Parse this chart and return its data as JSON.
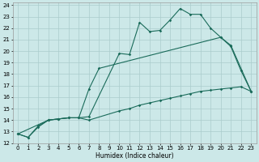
{
  "xlabel": "Humidex (Indice chaleur)",
  "bg_color": "#cce8e8",
  "grid_color": "#aacccc",
  "line_color": "#1a6b5a",
  "xlim": [
    -0.5,
    23.5
  ],
  "ylim": [
    12,
    24.2
  ],
  "xticks": [
    0,
    1,
    2,
    3,
    4,
    5,
    6,
    7,
    8,
    9,
    10,
    11,
    12,
    13,
    14,
    15,
    16,
    17,
    18,
    19,
    20,
    21,
    22,
    23
  ],
  "yticks": [
    12,
    13,
    14,
    15,
    16,
    17,
    18,
    19,
    20,
    21,
    22,
    23,
    24
  ],
  "line1_x": [
    0,
    1,
    2,
    3,
    4,
    5,
    6,
    7,
    10,
    11,
    12,
    13,
    14,
    15,
    16,
    17,
    18,
    19,
    20,
    21,
    22,
    23
  ],
  "line1_y": [
    12.8,
    12.5,
    13.5,
    14.0,
    14.1,
    14.2,
    14.2,
    14.3,
    19.8,
    19.7,
    22.5,
    21.7,
    21.8,
    22.7,
    23.7,
    23.2,
    23.2,
    22.0,
    21.2,
    20.4,
    18.3,
    16.5
  ],
  "line2_x": [
    0,
    3,
    4,
    5,
    6,
    7,
    8,
    20,
    21,
    23
  ],
  "line2_y": [
    12.8,
    14.0,
    14.1,
    14.2,
    14.2,
    16.7,
    18.5,
    21.2,
    20.5,
    16.5
  ],
  "line3_x": [
    0,
    1,
    2,
    3,
    4,
    5,
    6,
    7,
    10,
    11,
    12,
    13,
    14,
    15,
    16,
    17,
    18,
    19,
    20,
    21,
    22,
    23
  ],
  "line3_y": [
    12.8,
    12.5,
    13.4,
    14.0,
    14.1,
    14.2,
    14.2,
    14.0,
    14.8,
    15.0,
    15.3,
    15.5,
    15.7,
    15.9,
    16.1,
    16.3,
    16.5,
    16.6,
    16.7,
    16.8,
    16.9,
    16.5
  ]
}
